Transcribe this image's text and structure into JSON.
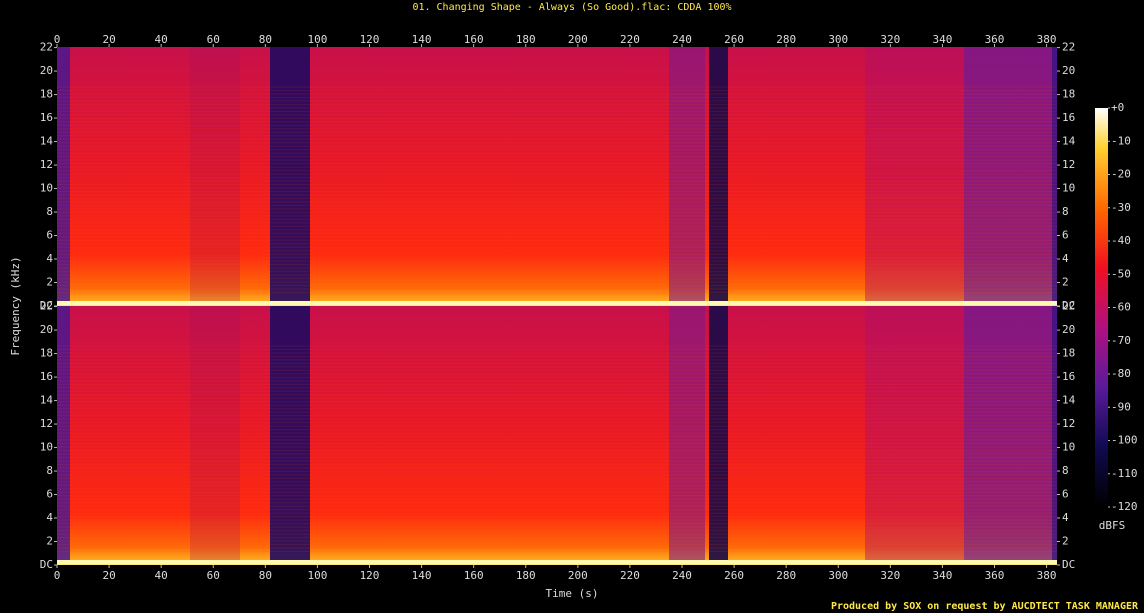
{
  "chart_data": {
    "type": "spectrogram",
    "title": "01. Changing Shape - Always (So Good).flac: CDDA 100%",
    "x_label": "Time (s)",
    "y_label": "Frequency (kHz)",
    "xlim": [
      0,
      384
    ],
    "xticks": [
      0,
      20,
      40,
      60,
      80,
      100,
      120,
      140,
      160,
      180,
      200,
      220,
      240,
      260,
      280,
      300,
      320,
      340,
      360,
      380
    ],
    "ylim": [
      0,
      22.05
    ],
    "yticks": [
      {
        "value": 0,
        "label": "DC"
      },
      2,
      4,
      6,
      8,
      10,
      12,
      14,
      16,
      18,
      20,
      22
    ],
    "colorbar": {
      "label": "dBFS",
      "lim": [
        -120,
        0
      ],
      "ticks": [
        {
          "value": 0,
          "label": "+0"
        },
        -10,
        -20,
        -30,
        -40,
        -50,
        -60,
        -70,
        -80,
        -90,
        -100,
        -110,
        -120
      ]
    },
    "footer": "Produced by SOX on request by AUCDTECT TASK MANAGER"
  }
}
